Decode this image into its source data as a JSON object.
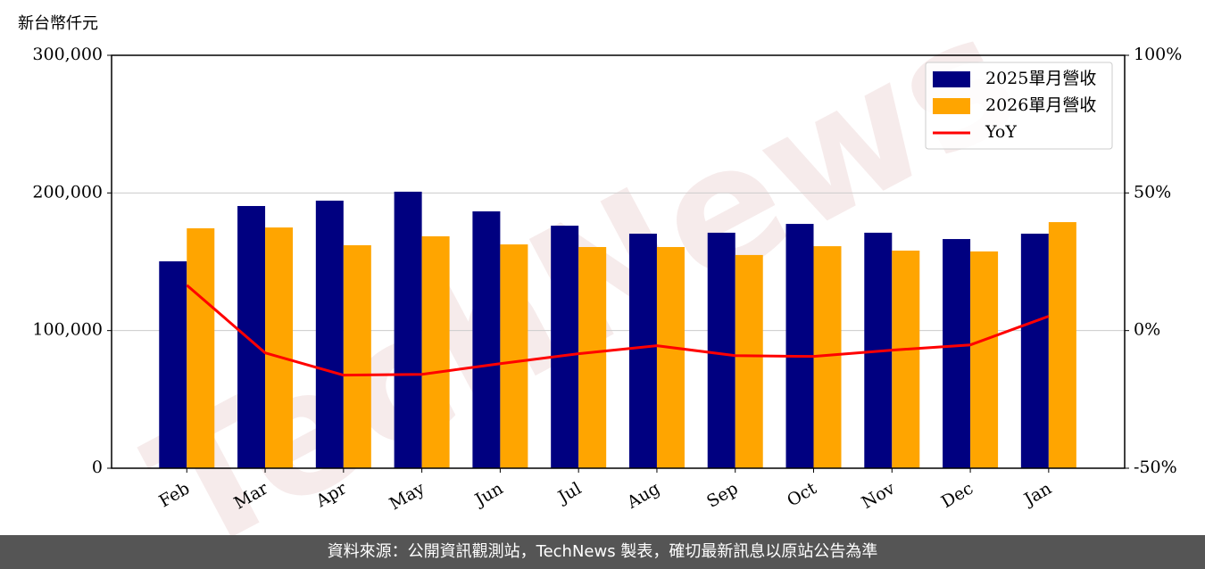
{
  "chart_data": {
    "type": "bar_line",
    "y_label": "新台幣仟元",
    "categories": [
      "Feb",
      "Mar",
      "Apr",
      "May",
      "Jun",
      "Jul",
      "Aug",
      "Sep",
      "Oct",
      "Nov",
      "Dec",
      "Jan"
    ],
    "series": [
      {
        "name": "2025單月營收",
        "color": "#000080",
        "type": "bar",
        "values": [
          150300,
          190500,
          194400,
          200900,
          186600,
          176200,
          170400,
          171100,
          177500,
          171100,
          166500,
          170400
        ]
      },
      {
        "name": "2026單月營收",
        "color": "#ffa500",
        "type": "bar",
        "values": [
          174300,
          174900,
          162000,
          168500,
          162600,
          160700,
          160700,
          154900,
          161300,
          158100,
          157500,
          178800
        ]
      },
      {
        "name": "YoY",
        "color": "#ff0000",
        "type": "line",
        "axis": "y2",
        "values": [
          16.5,
          -8.1,
          -16.2,
          -15.9,
          -12.0,
          -8.4,
          -5.5,
          -9.1,
          -9.4,
          -7.1,
          -5.2,
          5.2
        ]
      }
    ],
    "ylim": [
      0,
      300000
    ],
    "yticks": [
      0,
      {
        "value": 100000,
        "label": "100,000"
      },
      {
        "value": 200000,
        "label": "200,000"
      },
      {
        "value": 300000,
        "label": "300,000"
      }
    ],
    "y2lim": [
      -50,
      100
    ],
    "y2ticks": [
      {
        "value": -50,
        "label": "-50%"
      },
      {
        "value": 0,
        "label": "0%"
      },
      {
        "value": 50,
        "label": "50%"
      },
      {
        "value": 100,
        "label": "100%"
      }
    ],
    "grid": true,
    "legend": "upper right",
    "watermark": "TechNews"
  },
  "footer": "資料來源：公開資訊觀測站，TechNews 製表，確切最新訊息以原站公告為準"
}
